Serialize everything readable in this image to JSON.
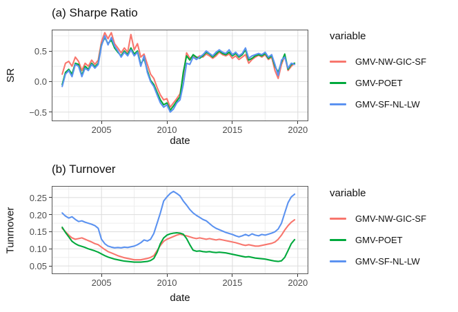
{
  "panel_a": {
    "title": "(a) Sharpe Ratio",
    "xlabel": "date",
    "ylabel": "SR",
    "legend_title": "variable"
  },
  "panel_b": {
    "title": "(b) Turnover",
    "xlabel": "date",
    "ylabel": "Tunrnover",
    "legend_title": "variable"
  },
  "legend": {
    "position": "right",
    "entries": [
      {
        "label": "GMV-NW-GIC-SF",
        "color": "#F8766D"
      },
      {
        "label": "GMV-POET",
        "color": "#00A93C"
      },
      {
        "label": "GMV-SF-NL-LW",
        "color": "#5B92F0"
      }
    ]
  },
  "style": {
    "grid_major_color": "#DBDBDB",
    "grid_minor_color": "#EDEDED",
    "panel_border_color": "#5A5A5A",
    "tick_mark_color": "#333333",
    "tick_text_color": "#4D4D4D"
  },
  "chart_data": [
    {
      "type": "line",
      "panel": "a",
      "title": "(a) Sharpe Ratio",
      "xlabel": "date",
      "ylabel": "SR",
      "grid": true,
      "legend_title": "variable",
      "xlim": [
        2001.2,
        2020.8
      ],
      "ylim": [
        -0.65,
        0.85
      ],
      "x_ticks": [
        {
          "v": 2005,
          "label": "2005"
        },
        {
          "v": 2010,
          "label": "2010"
        },
        {
          "v": 2015,
          "label": "2015"
        },
        {
          "v": 2020,
          "label": "2020"
        }
      ],
      "y_ticks": [
        {
          "v": 0.5,
          "label": "0.5"
        },
        {
          "v": 0.0,
          "label": "0.0"
        },
        {
          "v": -0.5,
          "label": "−0.5"
        }
      ],
      "x_minor_ticks": [
        2002.5,
        2007.5,
        2012.5,
        2017.5
      ],
      "y_minor_ticks": [
        0.75,
        0.25,
        -0.25
      ],
      "x": [
        2002,
        2002.25,
        2002.5,
        2002.75,
        2003,
        2003.25,
        2003.5,
        2003.75,
        2004,
        2004.25,
        2004.5,
        2004.75,
        2005,
        2005.25,
        2005.5,
        2005.75,
        2006,
        2006.25,
        2006.5,
        2006.75,
        2007,
        2007.25,
        2007.5,
        2007.75,
        2008,
        2008.25,
        2008.5,
        2008.75,
        2009,
        2009.25,
        2009.5,
        2009.75,
        2010,
        2010.25,
        2010.5,
        2010.75,
        2011,
        2011.25,
        2011.5,
        2011.75,
        2012,
        2012.25,
        2012.5,
        2012.75,
        2013,
        2013.25,
        2013.5,
        2013.75,
        2014,
        2014.25,
        2014.5,
        2014.75,
        2015,
        2015.25,
        2015.5,
        2015.75,
        2016,
        2016.25,
        2016.5,
        2016.75,
        2017,
        2017.25,
        2017.5,
        2017.75,
        2018,
        2018.25,
        2018.5,
        2018.75,
        2019,
        2019.25,
        2019.5,
        2019.75
      ],
      "series": [
        {
          "name": "GMV-NW-GIC-SF",
          "color": "#F8766D",
          "values": [
            0.12,
            0.3,
            0.33,
            0.25,
            0.4,
            0.33,
            0.18,
            0.3,
            0.25,
            0.35,
            0.28,
            0.35,
            0.65,
            0.8,
            0.7,
            0.8,
            0.62,
            0.55,
            0.47,
            0.55,
            0.48,
            0.77,
            0.52,
            0.62,
            0.4,
            0.45,
            0.28,
            0.12,
            0.05,
            -0.1,
            -0.22,
            -0.3,
            -0.28,
            -0.42,
            -0.35,
            -0.28,
            -0.2,
            0.1,
            0.47,
            0.38,
            0.42,
            0.38,
            0.42,
            0.4,
            0.45,
            0.42,
            0.38,
            0.42,
            0.48,
            0.44,
            0.42,
            0.45,
            0.38,
            0.42,
            0.36,
            0.4,
            0.44,
            0.3,
            0.36,
            0.4,
            0.43,
            0.4,
            0.44,
            0.36,
            0.4,
            0.18,
            0.05,
            0.28,
            0.42,
            0.18,
            0.25,
            0.3
          ]
        },
        {
          "name": "GMV-POET",
          "color": "#00A93C",
          "values": [
            -0.05,
            0.15,
            0.2,
            0.12,
            0.3,
            0.28,
            0.1,
            0.25,
            0.2,
            0.3,
            0.24,
            0.3,
            0.6,
            0.72,
            0.62,
            0.68,
            0.55,
            0.48,
            0.42,
            0.5,
            0.44,
            0.55,
            0.45,
            0.5,
            0.28,
            0.38,
            0.18,
            0.02,
            -0.05,
            -0.18,
            -0.3,
            -0.38,
            -0.35,
            -0.47,
            -0.4,
            -0.32,
            -0.25,
            0.15,
            0.42,
            0.35,
            0.44,
            0.4,
            0.38,
            0.42,
            0.48,
            0.45,
            0.4,
            0.45,
            0.5,
            0.46,
            0.44,
            0.48,
            0.42,
            0.46,
            0.4,
            0.44,
            0.52,
            0.35,
            0.38,
            0.42,
            0.44,
            0.42,
            0.46,
            0.38,
            0.42,
            0.25,
            0.15,
            0.32,
            0.45,
            0.2,
            0.28,
            0.3
          ]
        },
        {
          "name": "GMV-SF-NL-LW",
          "color": "#5B92F0",
          "values": [
            -0.08,
            0.12,
            0.18,
            0.08,
            0.28,
            0.25,
            0.08,
            0.22,
            0.18,
            0.28,
            0.22,
            0.28,
            0.58,
            0.75,
            0.6,
            0.72,
            0.58,
            0.5,
            0.4,
            0.48,
            0.42,
            0.52,
            0.42,
            0.48,
            0.25,
            0.42,
            0.15,
            0.0,
            -0.08,
            -0.22,
            -0.35,
            -0.42,
            -0.38,
            -0.5,
            -0.45,
            -0.35,
            -0.3,
            -0.05,
            0.3,
            0.28,
            0.4,
            0.36,
            0.4,
            0.44,
            0.5,
            0.46,
            0.42,
            0.48,
            0.52,
            0.48,
            0.46,
            0.52,
            0.44,
            0.48,
            0.42,
            0.46,
            0.55,
            0.38,
            0.42,
            0.44,
            0.46,
            0.44,
            0.48,
            0.4,
            0.44,
            0.28,
            0.1,
            0.35,
            0.4,
            0.22,
            0.3,
            0.28
          ]
        }
      ]
    },
    {
      "type": "line",
      "panel": "b",
      "title": "(b) Turnover",
      "xlabel": "date",
      "ylabel": "Tunrnover",
      "grid": true,
      "legend_title": "variable",
      "xlim": [
        2001.2,
        2020.8
      ],
      "ylim": [
        0.026,
        0.284
      ],
      "x_ticks": [
        {
          "v": 2005,
          "label": "2005"
        },
        {
          "v": 2010,
          "label": "2010"
        },
        {
          "v": 2015,
          "label": "2015"
        },
        {
          "v": 2020,
          "label": "2020"
        }
      ],
      "y_ticks": [
        {
          "v": 0.25,
          "label": "0.25"
        },
        {
          "v": 0.2,
          "label": "0.20"
        },
        {
          "v": 0.15,
          "label": "0.15"
        },
        {
          "v": 0.1,
          "label": "0.10"
        },
        {
          "v": 0.05,
          "label": "0.05"
        }
      ],
      "x_minor_ticks": [
        2002.5,
        2007.5,
        2012.5,
        2017.5
      ],
      "y_minor_ticks": [
        0.275,
        0.225,
        0.175,
        0.125,
        0.075
      ],
      "x": [
        2002,
        2002.25,
        2002.5,
        2002.75,
        2003,
        2003.25,
        2003.5,
        2003.75,
        2004,
        2004.25,
        2004.5,
        2004.75,
        2005,
        2005.25,
        2005.5,
        2005.75,
        2006,
        2006.25,
        2006.5,
        2006.75,
        2007,
        2007.25,
        2007.5,
        2007.75,
        2008,
        2008.25,
        2008.5,
        2008.75,
        2009,
        2009.25,
        2009.5,
        2009.75,
        2010,
        2010.25,
        2010.5,
        2010.75,
        2011,
        2011.25,
        2011.5,
        2011.75,
        2012,
        2012.25,
        2012.5,
        2012.75,
        2013,
        2013.25,
        2013.5,
        2013.75,
        2014,
        2014.25,
        2014.5,
        2014.75,
        2015,
        2015.25,
        2015.5,
        2015.75,
        2016,
        2016.25,
        2016.5,
        2016.75,
        2017,
        2017.25,
        2017.5,
        2017.75,
        2018,
        2018.25,
        2018.5,
        2018.75,
        2019,
        2019.25,
        2019.5,
        2019.75
      ],
      "series": [
        {
          "name": "GMV-NW-GIC-SF",
          "color": "#F8766D",
          "values": [
            0.16,
            0.15,
            0.14,
            0.132,
            0.128,
            0.13,
            0.132,
            0.128,
            0.124,
            0.12,
            0.115,
            0.112,
            0.105,
            0.098,
            0.092,
            0.088,
            0.084,
            0.08,
            0.077,
            0.074,
            0.072,
            0.07,
            0.068,
            0.068,
            0.068,
            0.07,
            0.072,
            0.075,
            0.08,
            0.095,
            0.11,
            0.122,
            0.128,
            0.132,
            0.136,
            0.14,
            0.143,
            0.14,
            0.138,
            0.135,
            0.132,
            0.13,
            0.132,
            0.13,
            0.128,
            0.13,
            0.128,
            0.126,
            0.128,
            0.126,
            0.124,
            0.122,
            0.12,
            0.118,
            0.115,
            0.112,
            0.11,
            0.112,
            0.11,
            0.108,
            0.108,
            0.11,
            0.112,
            0.114,
            0.116,
            0.12,
            0.128,
            0.14,
            0.155,
            0.168,
            0.178,
            0.185
          ]
        },
        {
          "name": "GMV-POET",
          "color": "#00A93C",
          "values": [
            0.163,
            0.148,
            0.135,
            0.122,
            0.115,
            0.11,
            0.107,
            0.104,
            0.1,
            0.097,
            0.094,
            0.09,
            0.085,
            0.08,
            0.076,
            0.073,
            0.07,
            0.068,
            0.066,
            0.064,
            0.063,
            0.062,
            0.061,
            0.061,
            0.061,
            0.062,
            0.063,
            0.066,
            0.072,
            0.09,
            0.115,
            0.132,
            0.14,
            0.144,
            0.146,
            0.147,
            0.146,
            0.143,
            0.13,
            0.112,
            0.096,
            0.093,
            0.094,
            0.092,
            0.091,
            0.092,
            0.09,
            0.089,
            0.09,
            0.089,
            0.088,
            0.086,
            0.084,
            0.082,
            0.08,
            0.078,
            0.076,
            0.077,
            0.075,
            0.073,
            0.072,
            0.071,
            0.07,
            0.068,
            0.066,
            0.064,
            0.063,
            0.065,
            0.075,
            0.095,
            0.115,
            0.127
          ]
        },
        {
          "name": "GMV-SF-NL-LW",
          "color": "#5B92F0",
          "values": [
            0.205,
            0.196,
            0.19,
            0.194,
            0.186,
            0.18,
            0.182,
            0.178,
            0.175,
            0.172,
            0.168,
            0.16,
            0.128,
            0.115,
            0.108,
            0.105,
            0.103,
            0.104,
            0.103,
            0.105,
            0.104,
            0.106,
            0.108,
            0.112,
            0.118,
            0.126,
            0.123,
            0.128,
            0.145,
            0.175,
            0.205,
            0.24,
            0.252,
            0.262,
            0.268,
            0.262,
            0.255,
            0.24,
            0.228,
            0.215,
            0.205,
            0.198,
            0.192,
            0.186,
            0.182,
            0.174,
            0.166,
            0.16,
            0.156,
            0.152,
            0.148,
            0.145,
            0.142,
            0.138,
            0.135,
            0.138,
            0.142,
            0.138,
            0.144,
            0.14,
            0.138,
            0.142,
            0.14,
            0.143,
            0.146,
            0.15,
            0.158,
            0.175,
            0.205,
            0.235,
            0.252,
            0.26
          ]
        }
      ]
    }
  ]
}
